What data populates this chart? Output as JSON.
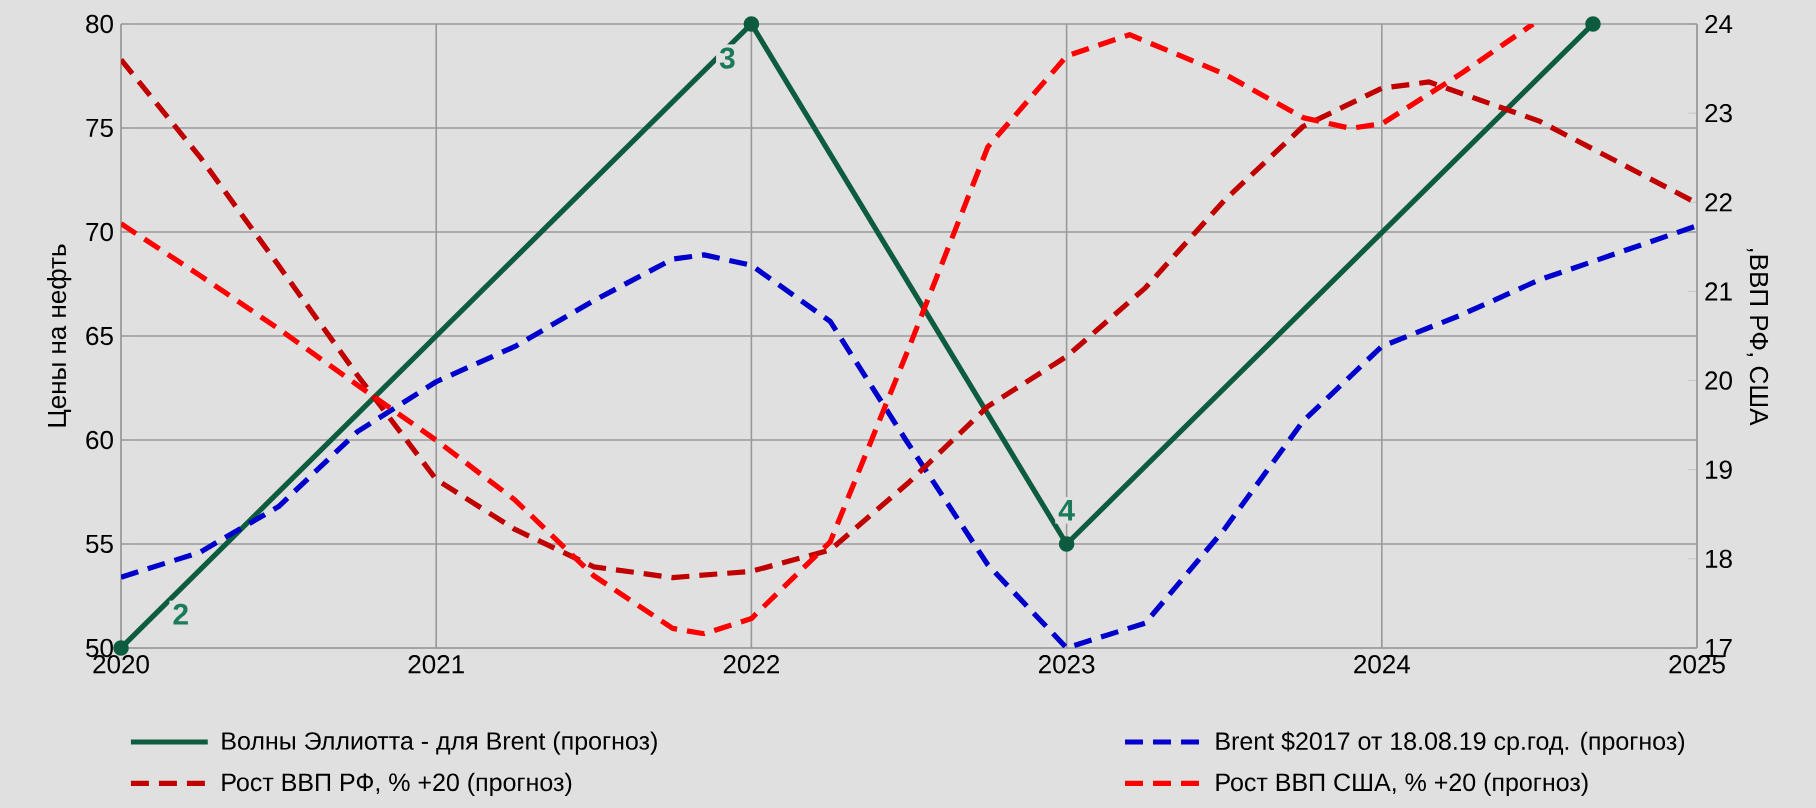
{
  "chart_data": {
    "type": "line",
    "ylabel": "Цены на нефть",
    "y2label": ",ВВП РФ, США",
    "xlim": [
      2020,
      2025
    ],
    "xticks": [
      2020,
      2021,
      2022,
      2023,
      2024,
      2025
    ],
    "ylim": [
      50,
      80
    ],
    "yticks": [
      50,
      55,
      60,
      65,
      70,
      75,
      80
    ],
    "y2lim": [
      17,
      24
    ],
    "y2ticks": [
      17,
      18,
      19,
      20,
      21,
      22,
      23,
      24
    ],
    "grid": true,
    "legend": "bottom",
    "annotations": [
      {
        "text": "2",
        "x": 2020,
        "y": 50
      },
      {
        "text": "3",
        "x": 2022,
        "y": 80
      },
      {
        "text": "4",
        "x": 2023,
        "y": 55
      }
    ],
    "series": [
      {
        "name": "Волны Эллиотта - для Brent (прогноз)",
        "color": "#0e5c3f",
        "marker": "circle",
        "line_style": "solid",
        "x": [
          2020,
          2022,
          2023,
          2024.67
        ],
        "values": [
          50,
          80,
          55,
          80
        ]
      },
      {
        "name": "Brent $2017 от  18.08.19  ср.год. (прогноз)",
        "color": "#0000cc",
        "marker": "none",
        "line_style": "dashed",
        "x": [
          2020,
          2020.25,
          2020.5,
          2020.75,
          2021,
          2021.25,
          2021.5,
          2021.75,
          2021.85,
          2022,
          2022.25,
          2022.49,
          2022.75,
          2023,
          2023.25,
          2023.5,
          2023.75,
          2024,
          2024.25,
          2024.5,
          2024.75,
          2025
        ],
        "values": [
          53.4,
          54.6,
          56.8,
          60.4,
          62.8,
          64.5,
          66.7,
          68.7,
          68.9,
          68.4,
          65.7,
          60,
          54,
          50,
          51.2,
          55.7,
          60.9,
          64.5,
          66,
          67.7,
          69,
          70.3
        ]
      },
      {
        "name": "Рост ВВП РФ, % +20 (прогноз)",
        "color": "#c00000",
        "marker": "none",
        "line_style": "dashed",
        "axis": "y2",
        "x": [
          2020,
          2020.25,
          2020.5,
          2020.75,
          2021,
          2021.25,
          2021.5,
          2021.75,
          2022,
          2022.25,
          2022.5,
          2022.75,
          2023,
          2023.25,
          2023.5,
          2023.75,
          2024,
          2024.15,
          2024.5,
          2024.75,
          2025
        ],
        "values": [
          23.6,
          22.51,
          21.29,
          20.06,
          18.89,
          18.33,
          17.91,
          17.79,
          17.86,
          18.1,
          18.86,
          19.71,
          20.27,
          21.04,
          22.02,
          22.85,
          23.28,
          23.35,
          22.91,
          22.45,
          21.99
        ]
      },
      {
        "name": "Рост ВВП США, % +20 (прогноз)",
        "color": "#ff0000",
        "marker": "none",
        "line_style": "dashed",
        "axis": "y2",
        "x": [
          2020,
          2020.25,
          2020.5,
          2020.75,
          2021,
          2021.25,
          2021.5,
          2021.75,
          2021.85,
          2022,
          2022.25,
          2022.5,
          2022.75,
          2023,
          2023.2,
          2023.5,
          2023.75,
          2023.9,
          2024,
          2024.25,
          2024.48
        ],
        "values": [
          21.76,
          21.18,
          20.58,
          19.95,
          19.33,
          18.66,
          17.81,
          17.22,
          17.16,
          17.33,
          18.19,
          20.37,
          22.62,
          23.64,
          23.88,
          23.44,
          22.95,
          22.83,
          22.88,
          23.44,
          24
        ]
      }
    ]
  }
}
